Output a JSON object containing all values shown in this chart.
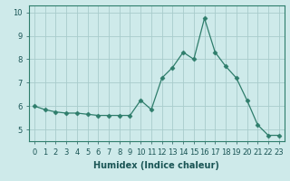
{
  "x": [
    0,
    1,
    2,
    3,
    4,
    5,
    6,
    7,
    8,
    9,
    10,
    11,
    12,
    13,
    14,
    15,
    16,
    17,
    18,
    19,
    20,
    21,
    22,
    23
  ],
  "y": [
    6.0,
    5.85,
    5.75,
    5.7,
    5.7,
    5.65,
    5.6,
    5.6,
    5.6,
    5.6,
    6.25,
    5.85,
    7.2,
    7.65,
    8.3,
    8.0,
    9.75,
    8.3,
    7.7,
    7.2,
    6.25,
    5.2,
    4.75,
    4.75
  ],
  "line_color": "#2e7d6b",
  "marker": "D",
  "marker_size": 2.5,
  "background_color": "#ceeaea",
  "grid_color": "#a8cccc",
  "xlabel": "Humidex (Indice chaleur)",
  "xlabel_fontsize": 7,
  "xlim": [
    -0.5,
    23.5
  ],
  "ylim": [
    4.5,
    10.3
  ],
  "yticks": [
    5,
    6,
    7,
    8,
    9,
    10
  ],
  "xticks": [
    0,
    1,
    2,
    3,
    4,
    5,
    6,
    7,
    8,
    9,
    10,
    11,
    12,
    13,
    14,
    15,
    16,
    17,
    18,
    19,
    20,
    21,
    22,
    23
  ],
  "tick_fontsize": 6
}
